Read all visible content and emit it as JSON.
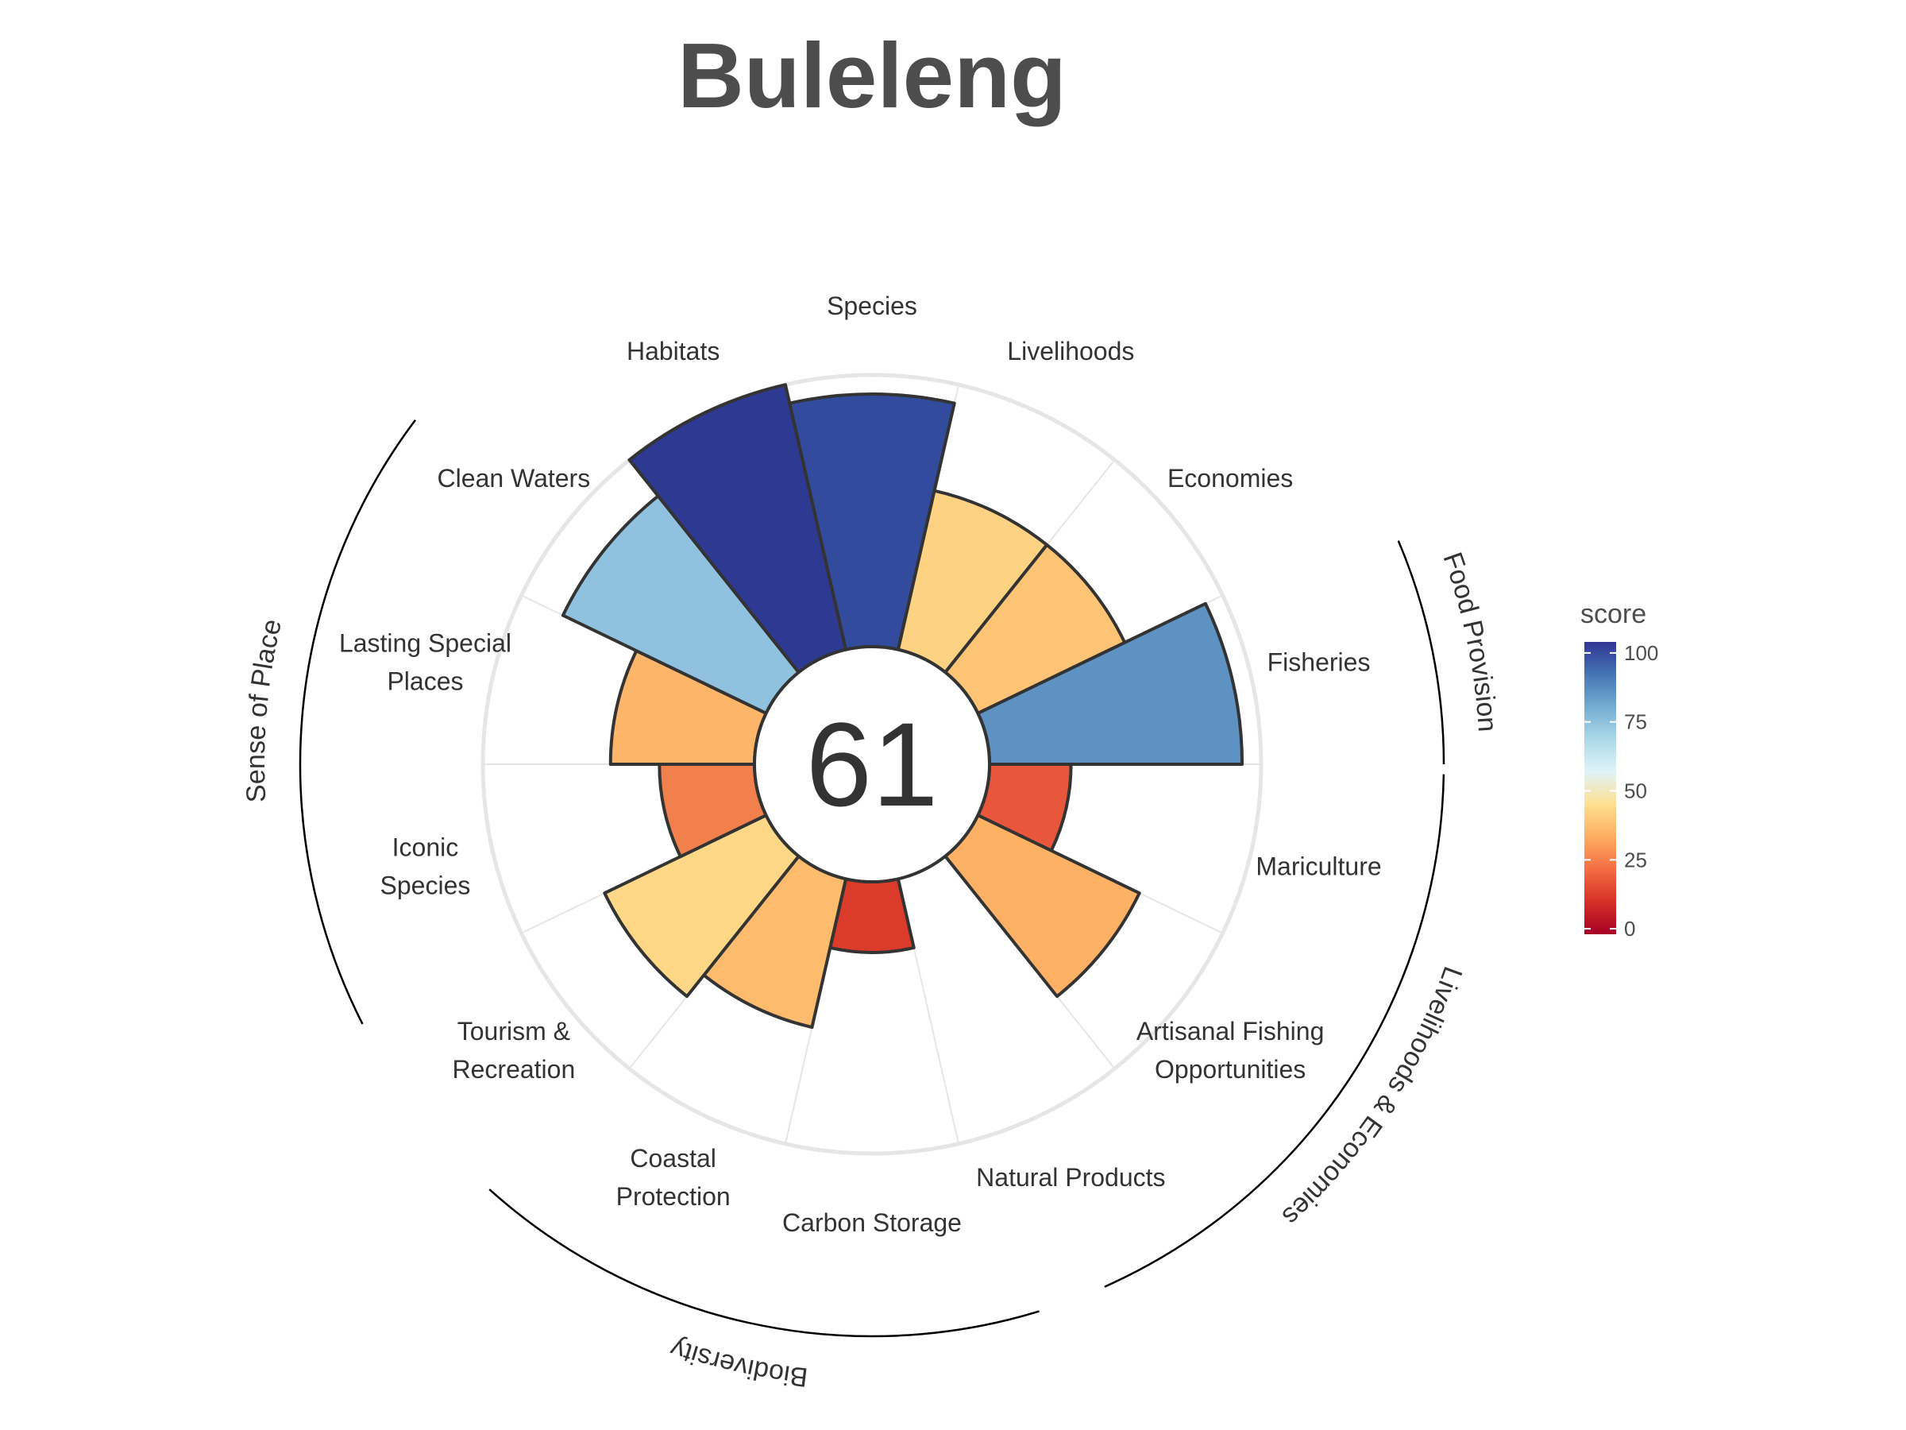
{
  "chart_data": {
    "type": "bar",
    "subtype": "polar-flower",
    "title": "Buleleng",
    "overall_score": "61",
    "categories": [
      "Fisheries",
      "Mariculture",
      "Artisanal Fishing Opportunities",
      "Natural Products",
      "Carbon Storage",
      "Coastal Protection",
      "Tourism & Recreation",
      "Iconic Species",
      "Lasting Special Places",
      "Clean Waters",
      "Habitats",
      "Species",
      "Livelihoods",
      "Economies"
    ],
    "label_lines": [
      [
        "Fisheries"
      ],
      [
        "Mariculture"
      ],
      [
        "Artisanal Fishing",
        "Opportunities"
      ],
      [
        "Natural Products"
      ],
      [
        "Carbon Storage"
      ],
      [
        "Coastal",
        "Protection"
      ],
      [
        "Tourism &",
        "Recreation"
      ],
      [
        "Iconic",
        "Species"
      ],
      [
        "Lasting Special",
        "Places"
      ],
      [
        "Clean Waters"
      ],
      [
        "Habitats"
      ],
      [
        "Species"
      ],
      [
        "Livelihoods"
      ],
      [
        "Economies"
      ]
    ],
    "values": [
      93,
      30,
      66,
      0,
      26,
      56,
      66,
      35,
      53,
      83,
      100,
      93,
      60,
      60
    ],
    "colors": [
      "#5d92c3",
      "#e8573b",
      "#fdb164",
      null,
      "#db3b2b",
      "#fdbb6e",
      "#fed887",
      "#f2804c",
      "#fdb569",
      "#90c2df",
      "#2e3a91",
      "#324b9d",
      "#fed283",
      "#fec476"
    ],
    "groups": [
      {
        "name": "Food Provision",
        "label": "Food Provision"
      },
      {
        "name": "Livelihoods & Economies",
        "label": "Livelihoods & Economies"
      },
      {
        "name": "Biodiversity",
        "label": "Biodiversity"
      },
      {
        "name": "Sense of Place",
        "label": "Sense of Place"
      }
    ],
    "ylim": [
      0,
      100
    ],
    "legend": {
      "title": "score",
      "ticks": [
        100,
        75,
        50,
        25,
        0
      ],
      "tick_labels": [
        "100",
        "75",
        "50",
        "25",
        "0"
      ],
      "placement": "right",
      "colormap": [
        "#a50026",
        "#d73027",
        "#f46d43",
        "#fdae61",
        "#fee090",
        "#e0f3f8",
        "#abd9e9",
        "#74add1",
        "#4575b4",
        "#313695"
      ]
    }
  }
}
